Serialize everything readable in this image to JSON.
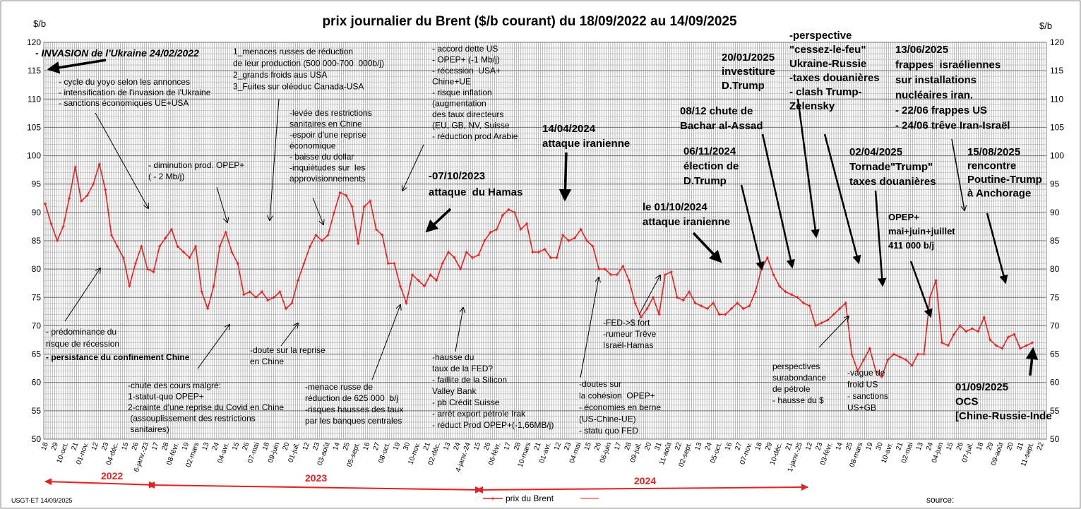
{
  "footer": {
    "credit": "USGT-ET  14/09/2025",
    "legend_label": "prix du Brent",
    "source_label": "source:"
  },
  "chart_data": {
    "type": "line",
    "title": "prix  journalier du  Brent ($/b courant) du 18/09/2022 au  14/09/2025",
    "ylabel_left": "$/b",
    "ylabel_right": "$/b",
    "ylim": [
      50,
      120
    ],
    "yticks": [
      50,
      55,
      60,
      65,
      70,
      75,
      80,
      85,
      90,
      95,
      100,
      105,
      110,
      115,
      120
    ],
    "grid": true,
    "line_color": "#e8201f",
    "x_tick_labels": [
      "18",
      "29",
      "10-oct.",
      "21",
      "01-nov.",
      "12",
      "23",
      "04-déc.",
      "15",
      "26",
      "6-janv.-23",
      "17",
      "28",
      "08-févr.",
      "19",
      "02-mars",
      "13",
      "24",
      "04-avr.",
      "15",
      "26",
      "07-mai",
      "18",
      "09-juin",
      "20",
      "01-juil.",
      "12",
      "23",
      "03-août",
      "14",
      "25",
      "05-sept.",
      "16",
      "27",
      "08-oct.",
      "19",
      "30",
      "10-nov.",
      "21",
      "02-déc.",
      "13",
      "24",
      "4-janv.-24",
      "15",
      "26",
      "06-févr.",
      "17",
      "28",
      "10-mars",
      "21",
      "01-avr.",
      "12",
      "23",
      "04-mai",
      "15",
      "26",
      "06-juin",
      "17",
      "28",
      "09-juil.",
      "20",
      "31",
      "11-août",
      "22",
      "02-sept.",
      "13",
      "24",
      "05-oct.",
      "16",
      "27",
      "07-nov.",
      "18",
      "29",
      "10-déc.",
      "21",
      "1-janv.-25",
      "12",
      "23",
      "03-févr.",
      "14",
      "25",
      "08-mars",
      "19",
      "30",
      "10-avr.",
      "21",
      "02-mai",
      "13",
      "24",
      "04-juin",
      "15",
      "26",
      "07-juil.",
      "18",
      "29",
      "09-août",
      "20",
      "31",
      "11-sept.",
      "22"
    ],
    "year_labels": [
      "2022",
      "2023",
      "2024"
    ],
    "series": [
      {
        "name": "prix du Brent",
        "points": [
          [
            0,
            91.5
          ],
          [
            1,
            88
          ],
          [
            2,
            85
          ],
          [
            3,
            87.5
          ],
          [
            4,
            92.5
          ],
          [
            5,
            98
          ],
          [
            6,
            92
          ],
          [
            7,
            93
          ],
          [
            8,
            95
          ],
          [
            9,
            98.5
          ],
          [
            10,
            94
          ],
          [
            11,
            86
          ],
          [
            12,
            84
          ],
          [
            13,
            82
          ],
          [
            14,
            77
          ],
          [
            15,
            81
          ],
          [
            16,
            84
          ],
          [
            17,
            80
          ],
          [
            18,
            79.5
          ],
          [
            19,
            84
          ],
          [
            20,
            85.5
          ],
          [
            21,
            87
          ],
          [
            22,
            84
          ],
          [
            23,
            83
          ],
          [
            24,
            82
          ],
          [
            25,
            84
          ],
          [
            26,
            76
          ],
          [
            27,
            73
          ],
          [
            28,
            77
          ],
          [
            29,
            84
          ],
          [
            30,
            86.5
          ],
          [
            31,
            83
          ],
          [
            32,
            81
          ],
          [
            33,
            75.5
          ],
          [
            34,
            76
          ],
          [
            35,
            75
          ],
          [
            36,
            76
          ],
          [
            37,
            74.5
          ],
          [
            38,
            75
          ],
          [
            39,
            76
          ],
          [
            40,
            73
          ],
          [
            41,
            74
          ],
          [
            42,
            78
          ],
          [
            43,
            81
          ],
          [
            44,
            84
          ],
          [
            45,
            86
          ],
          [
            46,
            85
          ],
          [
            47,
            86
          ],
          [
            48,
            90
          ],
          [
            49,
            93.5
          ],
          [
            50,
            93
          ],
          [
            51,
            91
          ],
          [
            52,
            84.5
          ],
          [
            53,
            91
          ],
          [
            54,
            92
          ],
          [
            55,
            87
          ],
          [
            56,
            86
          ],
          [
            57,
            81
          ],
          [
            58,
            81
          ],
          [
            59,
            77
          ],
          [
            60,
            74
          ],
          [
            61,
            79
          ],
          [
            62,
            78
          ],
          [
            63,
            77
          ],
          [
            64,
            79
          ],
          [
            65,
            78
          ],
          [
            66,
            81
          ],
          [
            67,
            83
          ],
          [
            68,
            82
          ],
          [
            69,
            80
          ],
          [
            70,
            83
          ],
          [
            71,
            82
          ],
          [
            72,
            82.5
          ],
          [
            73,
            85
          ],
          [
            74,
            86.5
          ],
          [
            75,
            87
          ],
          [
            76,
            89.5
          ],
          [
            77,
            90.5
          ],
          [
            78,
            90
          ],
          [
            79,
            87
          ],
          [
            80,
            88
          ],
          [
            81,
            83
          ],
          [
            82,
            83
          ],
          [
            83,
            83.5
          ],
          [
            84,
            82
          ],
          [
            85,
            82
          ],
          [
            86,
            86
          ],
          [
            87,
            85
          ],
          [
            88,
            85.5
          ],
          [
            89,
            87
          ],
          [
            90,
            85
          ],
          [
            91,
            84
          ],
          [
            92,
            80
          ],
          [
            93,
            80
          ],
          [
            94,
            79
          ],
          [
            95,
            79
          ],
          [
            96,
            80.5
          ],
          [
            97,
            78
          ],
          [
            98,
            74
          ],
          [
            99,
            71.5
          ],
          [
            100,
            73
          ],
          [
            101,
            75
          ],
          [
            102,
            72
          ],
          [
            103,
            79
          ],
          [
            104,
            79.5
          ],
          [
            105,
            75
          ],
          [
            106,
            74.5
          ],
          [
            107,
            76
          ],
          [
            108,
            74
          ],
          [
            109,
            73.5
          ],
          [
            110,
            73
          ],
          [
            111,
            74
          ],
          [
            112,
            72
          ],
          [
            113,
            72
          ],
          [
            114,
            73
          ],
          [
            115,
            74
          ],
          [
            116,
            73
          ],
          [
            117,
            73.5
          ],
          [
            118,
            76
          ],
          [
            119,
            80
          ],
          [
            120,
            82
          ],
          [
            121,
            79
          ],
          [
            122,
            77
          ],
          [
            123,
            76
          ],
          [
            124,
            75.5
          ],
          [
            125,
            75
          ],
          [
            126,
            74
          ],
          [
            127,
            73.5
          ],
          [
            128,
            70
          ],
          [
            129,
            70.5
          ],
          [
            130,
            71
          ],
          [
            131,
            72
          ],
          [
            132,
            73
          ],
          [
            133,
            74
          ],
          [
            134,
            65
          ],
          [
            135,
            62
          ],
          [
            136,
            64
          ],
          [
            137,
            66
          ],
          [
            138,
            62
          ],
          [
            139,
            61
          ],
          [
            140,
            64
          ],
          [
            141,
            65
          ],
          [
            142,
            64.5
          ],
          [
            143,
            64
          ],
          [
            144,
            63
          ],
          [
            145,
            65
          ],
          [
            146,
            65
          ],
          [
            147,
            75
          ],
          [
            148,
            78
          ],
          [
            149,
            67
          ],
          [
            150,
            66.5
          ],
          [
            151,
            68.5
          ],
          [
            152,
            70
          ],
          [
            153,
            69
          ],
          [
            154,
            69.5
          ],
          [
            155,
            69
          ],
          [
            156,
            71.5
          ],
          [
            157,
            67.5
          ],
          [
            158,
            66.5
          ],
          [
            159,
            66
          ],
          [
            160,
            68
          ],
          [
            161,
            68.5
          ],
          [
            162,
            66
          ],
          [
            163,
            66.5
          ],
          [
            164,
            67
          ]
        ]
      }
    ],
    "annotations": [
      {
        "text": "- INVASION de l'Ukraine 24/02/2022",
        "style": "heading"
      },
      {
        "text": "- cycle du yoyo selon les annonces\n- intensification de l'invasion de l'Ukraine\n- sanctions économiques UE+USA",
        "style": "note"
      },
      {
        "text": "1_menaces russes de réduction\nde leur production (500 000-700  000b/j)\n2_grands froids aus USA\n3_Fuites sur oléoduc Canada-USA",
        "style": "note"
      },
      {
        "text": "- accord dette US\n- OPEP+ (-1 Mb/j)\n- récession  USA+\nChine+UE\n- risque inflation\n(augmentation\ndes taux directeurs\n(EU, GB, NV, Suisse\n- réduction prod Arabie",
        "style": "note"
      },
      {
        "text": "-levée des restrictions\nsanitaires en Chine\n-espoir d'une reprise\néconomique\n- baisse du dollar\n-inquiètudes sur  les\napprovisionnements",
        "style": "note"
      },
      {
        "text": "- diminution prod. OPEP+\n( - 2 Mb/j)",
        "style": "note"
      },
      {
        "text": "-perspective\n\"cessez-le-feu\"\nUkraine-Russie\n-taxes douanières\n- clash Trump-\nZelensky",
        "style": "event"
      },
      {
        "text": "20/01/2025\ninvestiture\nD.Trump",
        "style": "event"
      },
      {
        "text": "13/06/2025\nfrappes  israéliennes\nsur installations\nnucléaires iran.\n- 22/06 frappes US\n- 24/06 trêve Iran-Israël",
        "style": "event"
      },
      {
        "text": "08/12 chute de\nBachar al-Assad",
        "style": "event"
      },
      {
        "text": "14/04/2024\nattaque iranienne",
        "style": "event"
      },
      {
        "text": "06/11/2024\nélection de\nD.Trump",
        "style": "event"
      },
      {
        "text": "02/04/2025\nTornade\"Trump\"\ntaxes douanières",
        "style": "event"
      },
      {
        "text": "15/08/2025\nrencontre\nPoutine-Trump\nà Anchorage",
        "style": "event"
      },
      {
        "text": "-07/10/2023\nattaque  du Hamas",
        "style": "event"
      },
      {
        "text": "le 01/10/2024\nattaque iranienne",
        "style": "event"
      },
      {
        "text": "OPEP+\nmai+juin+juillet\n411 000 b/j",
        "style": "event-small"
      },
      {
        "text": "- prédominance du\nrisque de récession",
        "style": "note"
      },
      {
        "text": "- persistance du confinement Chine",
        "style": "note-bold"
      },
      {
        "text": "-doute sur la reprise\nen Chine",
        "style": "note"
      },
      {
        "text": "-FED->$ fort\n-rumeur Trêve\nIsraël-Hamas",
        "style": "note"
      },
      {
        "text": "-hausse du\ntaux de la FED?\n- faillite de la Silicon\nValley Bank\n- pb Crédit Suisse\n- arrêt export pétrole Irak\n- réduct Prod OPEP+(-1,66MB/j)",
        "style": "note"
      },
      {
        "text": "-chute des cours malgré:\n1-statut-quo OPEP+\n2-crainte d'une reprise du Covid en Chine\n (assouplissement des restrictions\n sanitaires)",
        "style": "note"
      },
      {
        "text": "-menace russe de\nréduction de 625 000  b/j\n-risques hausses des taux\npar les banques centrales",
        "style": "note"
      },
      {
        "text": "-doutes sur\nla cohésion  OPEP+\n- économies en berne\n(US-Chine-UE)\n- statu quo FED",
        "style": "note"
      },
      {
        "text": "perspectives\nsurabondance\nde pétrole\n- hausse du $",
        "style": "note"
      },
      {
        "text": "-vague de\nfroid US\n- sanctions\nUS+GB",
        "style": "note"
      },
      {
        "text": "01/09/2025\nOCS\n[Chine-Russie-Inde",
        "style": "event"
      }
    ]
  }
}
